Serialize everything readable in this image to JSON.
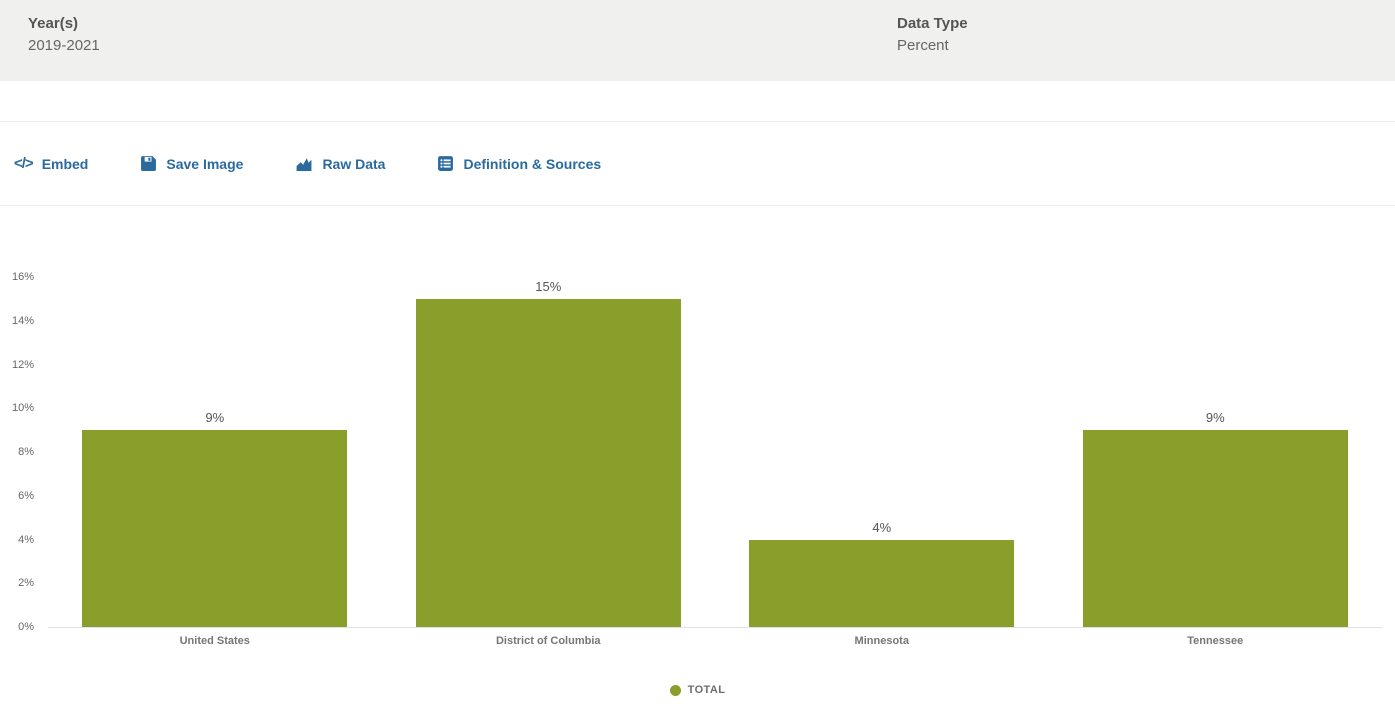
{
  "meta": {
    "year_label": "Year(s)",
    "year_value": "2019-2021",
    "datatype_label": "Data Type",
    "datatype_value": "Percent"
  },
  "toolbar": {
    "embed_label": "Embed",
    "embed_icon": "</>",
    "save_image_label": "Save Image",
    "raw_data_label": "Raw Data",
    "definitions_label": "Definition & Sources"
  },
  "colors": {
    "bar": "#8a9e2b",
    "toolbar_link": "#2a6a9e",
    "header_bg": "#f0f0ee"
  },
  "chart_data": {
    "type": "bar",
    "categories": [
      "United States",
      "District of Columbia",
      "Minnesota",
      "Tennessee"
    ],
    "values": [
      9,
      15,
      4,
      9
    ],
    "value_labels": [
      "9%",
      "15%",
      "4%",
      "9%"
    ],
    "series_name": "TOTAL",
    "title": "",
    "xlabel": "",
    "ylabel": "",
    "ylim": [
      0,
      16
    ],
    "y_ticks": [
      "0%",
      "2%",
      "4%",
      "6%",
      "8%",
      "10%",
      "12%",
      "14%",
      "16%"
    ],
    "grid": false,
    "legend_position": "bottom",
    "bar_color": "#8a9e2b"
  }
}
